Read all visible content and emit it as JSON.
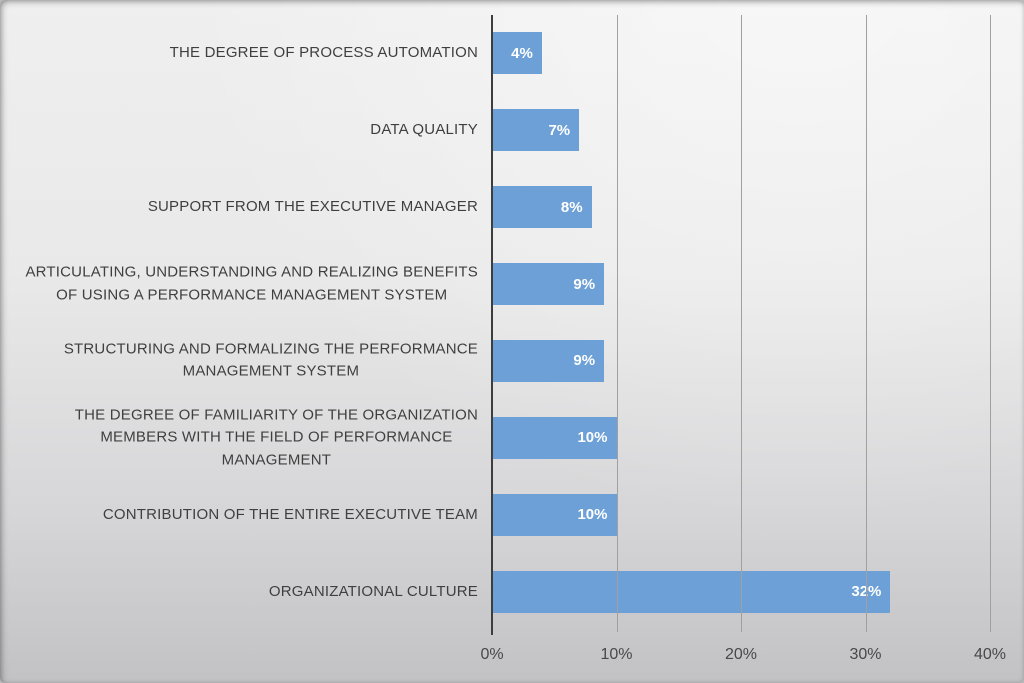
{
  "chart_data": {
    "type": "bar",
    "orientation": "horizontal",
    "title": "",
    "xlabel": "",
    "ylabel": "",
    "xlim": [
      0,
      40
    ],
    "x_ticks": [
      "0%",
      "10%",
      "20%",
      "30%",
      "40%"
    ],
    "grid": true,
    "legend": "none",
    "categories": [
      "THE DEGREE OF PROCESS AUTOMATION",
      "DATA QUALITY",
      "SUPPORT FROM THE EXECUTIVE MANAGER",
      "ARTICULATING, UNDERSTANDING AND REALIZING BENEFITS\nOF USING A PERFORMANCE MANAGEMENT SYSTEM",
      "STRUCTURING AND FORMALIZING THE PERFORMANCE\nMANAGEMENT SYSTEM",
      "THE DEGREE OF FAMILIARITY OF THE ORGANIZATION\nMEMBERS WITH THE FIELD OF PERFORMANCE\nMANAGEMENT",
      "CONTRIBUTION OF THE ENTIRE EXECUTIVE TEAM",
      "ORGANIZATIONAL CULTURE"
    ],
    "values": [
      4,
      7,
      8,
      9,
      9,
      10,
      10,
      32
    ],
    "value_labels": [
      "4%",
      "7%",
      "8%",
      "9%",
      "9%",
      "10%",
      "10%",
      "32%"
    ],
    "colors": {
      "bar": "#6ca0d6",
      "value_label": "#ffffff",
      "axis_line": "#3d3d3d",
      "gridline": "#a0a0a0",
      "category_label": "#3f3f3f",
      "tick_label": "#484848",
      "background_top": "#efefef",
      "background_bottom": "#c2c2c4"
    }
  }
}
